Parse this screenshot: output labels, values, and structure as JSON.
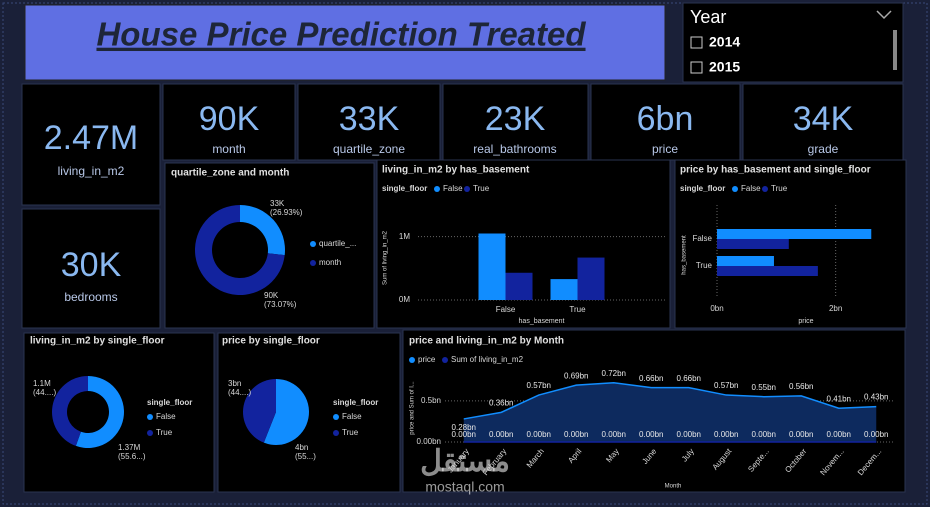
{
  "title": "House Price Prediction Treated",
  "slicer": {
    "title": "Year",
    "options": [
      "2014",
      "2015"
    ]
  },
  "cards": [
    {
      "value": "2.47M",
      "label": "living_in_m2"
    },
    {
      "value": "90K",
      "label": "month"
    },
    {
      "value": "33K",
      "label": "quartile_zone"
    },
    {
      "value": "23K",
      "label": "real_bathrooms"
    },
    {
      "value": "6bn",
      "label": "price"
    },
    {
      "value": "34K",
      "label": "grade"
    },
    {
      "value": "30K",
      "label": "bedrooms"
    }
  ],
  "watermark": [
    "مستقل",
    "mostaql.com"
  ],
  "chart_data": [
    {
      "type": "donut",
      "title": "quartile_zone and month",
      "categories": [
        "quartile_...",
        "month"
      ],
      "values": [
        33000,
        90000
      ],
      "value_labels": [
        "33K (26.93%)",
        "90K (73.07%)"
      ],
      "colors": [
        "#118dff",
        "#12239e"
      ]
    },
    {
      "type": "bar",
      "title": "living_in_m2 by has_basement",
      "legend_title": "single_floor",
      "categories": [
        "False",
        "True"
      ],
      "series": [
        {
          "name": "False",
          "color": "#118dff",
          "values": [
            1050000,
            330000
          ]
        },
        {
          "name": "True",
          "color": "#12239e",
          "values": [
            430000,
            670000
          ]
        }
      ],
      "ylabel": "Sum of living_in_m2",
      "xlabel": "has_basement",
      "ylim": [
        0,
        1500000
      ],
      "yticks": [
        {
          "value": 0,
          "label": "0M"
        },
        {
          "value": 1000000,
          "label": "1M"
        }
      ],
      "grid": true
    },
    {
      "type": "hbar",
      "title": "price by has_basement and single_floor",
      "legend_title": "single_floor",
      "categories": [
        "False",
        "True"
      ],
      "series": [
        {
          "name": "False",
          "color": "#118dff",
          "values": [
            2600000000,
            960000000
          ]
        },
        {
          "name": "True",
          "color": "#12239e",
          "values": [
            1210000000,
            1700000000
          ]
        }
      ],
      "ylabel": "has_basement",
      "xlabel": "price",
      "xlim": [
        0,
        3000000000
      ],
      "xticks": [
        {
          "value": 0,
          "label": "0bn"
        },
        {
          "value": 2000000000,
          "label": "2bn"
        }
      ],
      "grid": true
    },
    {
      "type": "donut",
      "title": "living_in_m2 by single_floor",
      "legend_title": "single_floor",
      "categories": [
        "False",
        "True"
      ],
      "values": [
        1370000,
        1100000
      ],
      "value_labels": [
        "1.37M (55.6...)",
        "1.1M (44....)"
      ],
      "colors": [
        "#118dff",
        "#12239e"
      ]
    },
    {
      "type": "pie",
      "title": "price by single_floor",
      "legend_title": "single_floor",
      "categories": [
        "False",
        "True"
      ],
      "values": [
        3640000000,
        2860000000
      ],
      "value_labels": [
        "4bn (55...)",
        "3bn (44....)"
      ],
      "colors": [
        "#118dff",
        "#12239e"
      ]
    },
    {
      "type": "area",
      "title": "price and living_in_m2 by Month",
      "categories": [
        "January",
        "February",
        "March",
        "April",
        "May",
        "June",
        "July",
        "August",
        "Septe...",
        "October",
        "Novem...",
        "Decem..."
      ],
      "series": [
        {
          "name": "price",
          "color": "#118dff",
          "values": [
            280000000,
            360000000,
            570000000,
            690000000,
            720000000,
            660000000,
            660000000,
            570000000,
            550000000,
            560000000,
            410000000,
            430000000
          ],
          "value_labels": [
            "0.28bn",
            "0.36bn",
            "0.57bn",
            "0.69bn",
            "0.72bn",
            "0.66bn",
            "0.66bn",
            "0.57bn",
            "0.55bn",
            "0.56bn",
            "0.41bn",
            "0.43bn"
          ]
        },
        {
          "name": "Sum of living_in_m2",
          "color": "#12239e",
          "values": [
            206000,
            206000,
            206000,
            206000,
            206000,
            206000,
            206000,
            206000,
            206000,
            206000,
            206000,
            206000
          ],
          "value_labels": [
            "0.00bn",
            "0.00bn",
            "0.00bn",
            "0.00bn",
            "0.00bn",
            "0.00bn",
            "0.00bn",
            "0.00bn",
            "0.00bn",
            "0.00bn",
            "0.00bn",
            "0.00bn"
          ]
        }
      ],
      "ylabel": "price and Sum of l...",
      "xlabel": "Month",
      "ylim": [
        0,
        850000000
      ],
      "yticks": [
        {
          "value": 0,
          "label": "0.00bn"
        },
        {
          "value": 500000000,
          "label": "0.5bn"
        }
      ],
      "grid": true
    }
  ]
}
